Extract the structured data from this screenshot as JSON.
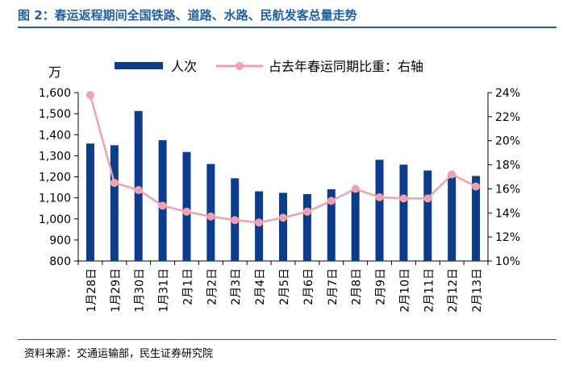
{
  "header": {
    "title": "图 2：春运返程期间全国铁路、道路、水路、民航发客总量走势"
  },
  "footer": {
    "source": "资料来源：交通运输部，民生证券研究院"
  },
  "chart_data": {
    "type": "bar",
    "title": "图 2：春运返程期间全国铁路、道路、水路、民航发客总量走势",
    "y_unit": "万",
    "categories": [
      "1月28日",
      "1月29日",
      "1月30日",
      "1月31日",
      "2月1日",
      "2月2日",
      "2月3日",
      "2月4日",
      "2月5日",
      "2月6日",
      "2月7日",
      "2月8日",
      "2月9日",
      "2月10日",
      "2月11日",
      "2月12日",
      "2月13日"
    ],
    "series": [
      {
        "name": "人次",
        "type": "bar",
        "axis": "left",
        "color": "#0a3d8f",
        "values": [
          1358,
          1350,
          1513,
          1374,
          1318,
          1261,
          1193,
          1131,
          1124,
          1118,
          1141,
          1131,
          1281,
          1258,
          1230,
          1214,
          1204
        ]
      },
      {
        "name": "占去年春运同期比重：右轴",
        "type": "line",
        "axis": "right",
        "color": "#f4a0ab",
        "values": [
          23.8,
          16.5,
          15.9,
          14.6,
          14.1,
          13.7,
          13.4,
          13.2,
          13.6,
          14.1,
          15.0,
          16.0,
          15.3,
          15.2,
          15.2,
          17.2,
          16.2
        ]
      }
    ],
    "y_left": {
      "min": 800,
      "max": 1600,
      "step": 100,
      "ticks": [
        "800",
        "900",
        "1,000",
        "1,100",
        "1,200",
        "1,300",
        "1,400",
        "1,500",
        "1,600"
      ]
    },
    "y_right": {
      "min": 10,
      "max": 24,
      "step": 2,
      "ticks": [
        "10%",
        "12%",
        "14%",
        "16%",
        "18%",
        "20%",
        "22%",
        "24%"
      ]
    },
    "legend_position": "top"
  }
}
